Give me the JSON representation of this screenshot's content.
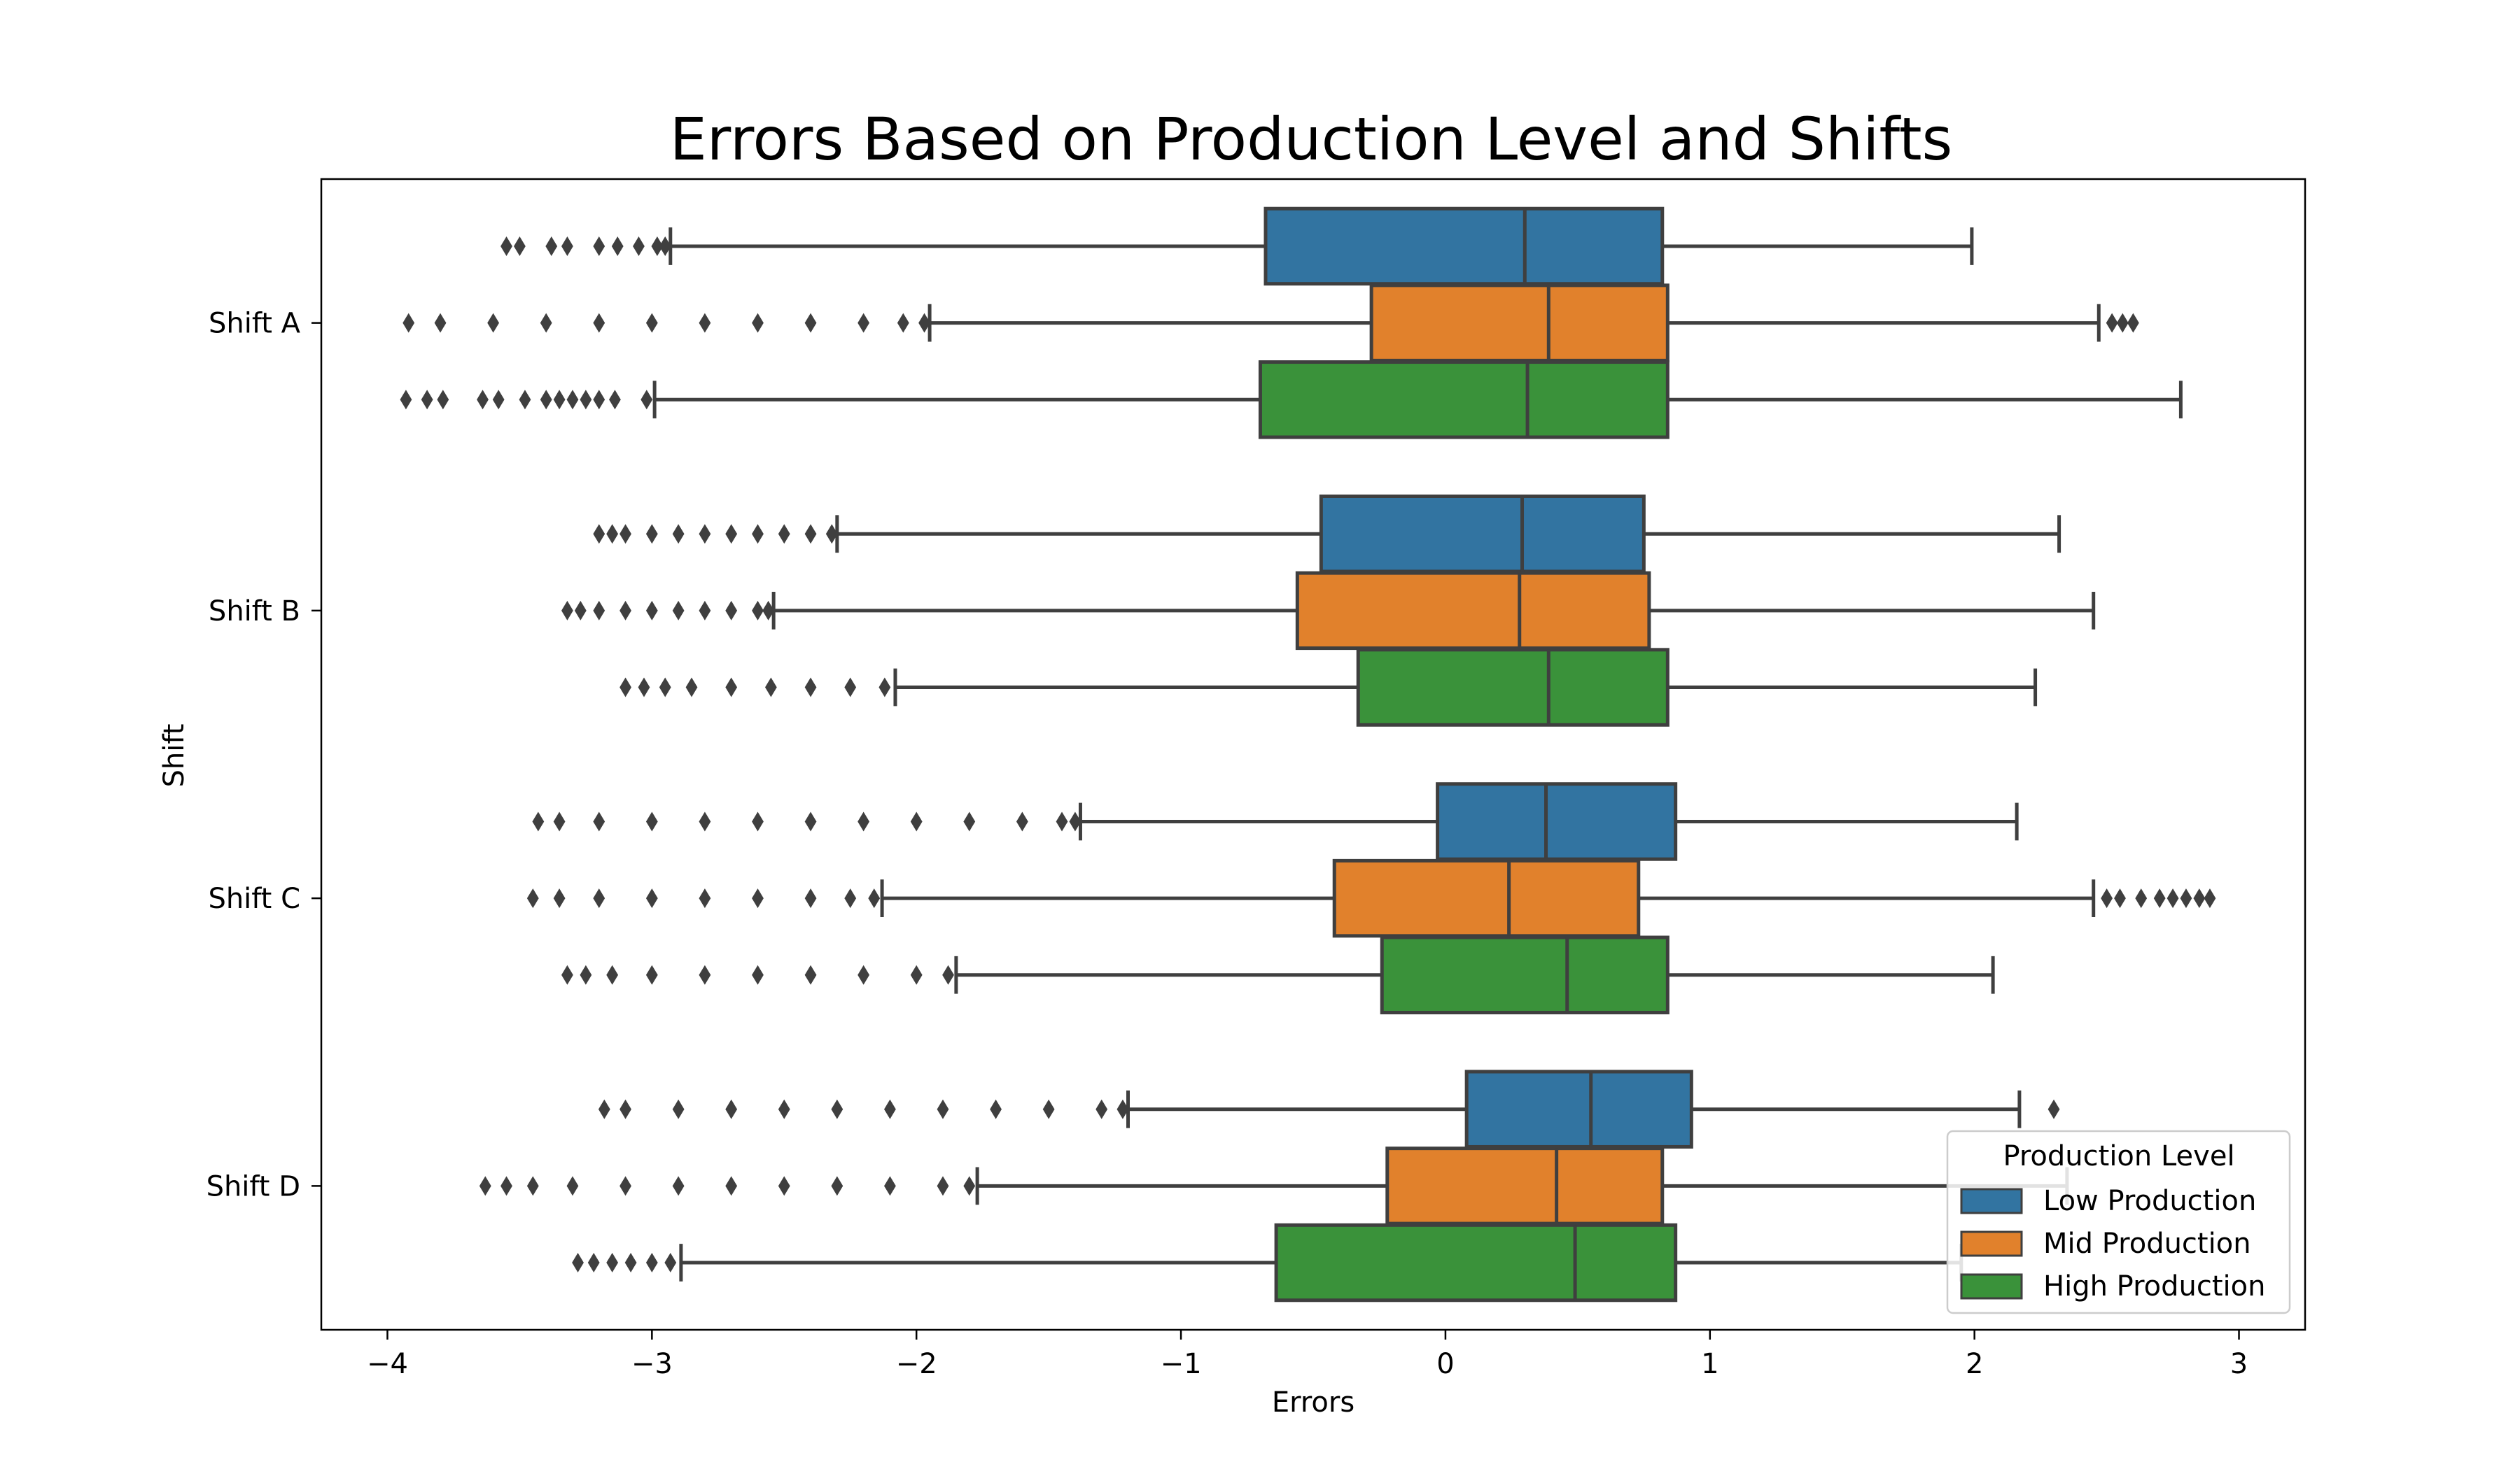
{
  "chart_data": {
    "type": "box",
    "orientation": "horizontal",
    "title": "Errors Based on Production Level and Shifts",
    "xlabel": "Errors",
    "ylabel": "Shift",
    "xlim": [
      -4.25,
      3.25
    ],
    "xticks": [
      -4,
      -3,
      -2,
      -1,
      0,
      1,
      2,
      3
    ],
    "xtick_labels": [
      "−4",
      "−3",
      "−2",
      "−1",
      "0",
      "1",
      "2",
      "3"
    ],
    "categories": [
      "Shift A",
      "Shift B",
      "Shift C",
      "Shift D"
    ],
    "grid": false,
    "legend": {
      "title": "Production Level",
      "placement": "lower right"
    },
    "series": [
      {
        "name": "Low Production",
        "color": "#3274a1",
        "boxes": [
          {
            "whislo": -2.93,
            "q1": -0.68,
            "med": 0.3,
            "q3": 0.82,
            "whishi": 1.99,
            "fliers": [
              -3.55,
              -3.5,
              -3.38,
              -3.32,
              -3.2,
              -3.13,
              -3.05,
              -2.98,
              -2.95
            ]
          },
          {
            "whislo": -2.3,
            "q1": -0.47,
            "med": 0.29,
            "q3": 0.75,
            "whishi": 2.32,
            "fliers": [
              -3.2,
              -3.15,
              -3.1,
              -3.0,
              -2.9,
              -2.8,
              -2.7,
              -2.6,
              -2.5,
              -2.4,
              -2.32
            ]
          },
          {
            "whislo": -1.38,
            "q1": -0.03,
            "med": 0.38,
            "q3": 0.87,
            "whishi": 2.16,
            "fliers": [
              -3.43,
              -3.35,
              -3.2,
              -3.0,
              -2.8,
              -2.6,
              -2.4,
              -2.2,
              -2.0,
              -1.8,
              -1.6,
              -1.45,
              -1.4
            ]
          },
          {
            "whislo": -1.2,
            "q1": 0.08,
            "med": 0.55,
            "q3": 0.93,
            "whishi": 2.17,
            "fliers": [
              -3.18,
              -3.1,
              -2.9,
              -2.7,
              -2.5,
              -2.3,
              -2.1,
              -1.9,
              -1.7,
              -1.5,
              -1.3,
              -1.22,
              2.3
            ]
          }
        ]
      },
      {
        "name": "Mid Production",
        "color": "#e1812c",
        "boxes": [
          {
            "whislo": -1.95,
            "q1": -0.28,
            "med": 0.39,
            "q3": 0.84,
            "whishi": 2.47,
            "fliers": [
              -3.92,
              -3.8,
              -3.6,
              -3.4,
              -3.2,
              -3.0,
              -2.8,
              -2.6,
              -2.4,
              -2.2,
              -2.05,
              -1.97,
              2.52,
              2.56,
              2.6
            ]
          },
          {
            "whislo": -2.54,
            "q1": -0.56,
            "med": 0.28,
            "q3": 0.77,
            "whishi": 2.45,
            "fliers": [
              -3.32,
              -3.27,
              -3.2,
              -3.1,
              -3.0,
              -2.9,
              -2.8,
              -2.7,
              -2.6,
              -2.56
            ]
          },
          {
            "whislo": -2.13,
            "q1": -0.42,
            "med": 0.24,
            "q3": 0.73,
            "whishi": 2.45,
            "fliers": [
              -3.45,
              -3.35,
              -3.2,
              -3.0,
              -2.8,
              -2.6,
              -2.4,
              -2.25,
              -2.16,
              2.5,
              2.55,
              2.63,
              2.7,
              2.75,
              2.8,
              2.85,
              2.89
            ]
          },
          {
            "whislo": -1.77,
            "q1": -0.22,
            "med": 0.42,
            "q3": 0.82,
            "whishi": 2.35,
            "fliers": [
              -3.63,
              -3.55,
              -3.45,
              -3.3,
              -3.1,
              -2.9,
              -2.7,
              -2.5,
              -2.3,
              -2.1,
              -1.9,
              -1.8
            ]
          }
        ]
      },
      {
        "name": "High Production",
        "color": "#3a923a",
        "boxes": [
          {
            "whislo": -2.99,
            "q1": -0.7,
            "med": 0.31,
            "q3": 0.84,
            "whishi": 2.78,
            "fliers": [
              -3.93,
              -3.85,
              -3.79,
              -3.64,
              -3.58,
              -3.48,
              -3.4,
              -3.35,
              -3.3,
              -3.25,
              -3.2,
              -3.14,
              -3.02
            ]
          },
          {
            "whislo": -2.08,
            "q1": -0.33,
            "med": 0.39,
            "q3": 0.84,
            "whishi": 2.23,
            "fliers": [
              -3.1,
              -3.03,
              -2.95,
              -2.85,
              -2.7,
              -2.55,
              -2.4,
              -2.25,
              -2.12
            ]
          },
          {
            "whislo": -1.85,
            "q1": -0.24,
            "med": 0.46,
            "q3": 0.84,
            "whishi": 2.07,
            "fliers": [
              -3.32,
              -3.25,
              -3.15,
              -3.0,
              -2.8,
              -2.6,
              -2.4,
              -2.2,
              -2.0,
              -1.88
            ]
          },
          {
            "whislo": -2.89,
            "q1": -0.64,
            "med": 0.49,
            "q3": 0.87,
            "whishi": 1.95,
            "fliers": [
              -3.28,
              -3.22,
              -3.15,
              -3.08,
              -3.0,
              -2.93
            ]
          }
        ]
      }
    ]
  }
}
